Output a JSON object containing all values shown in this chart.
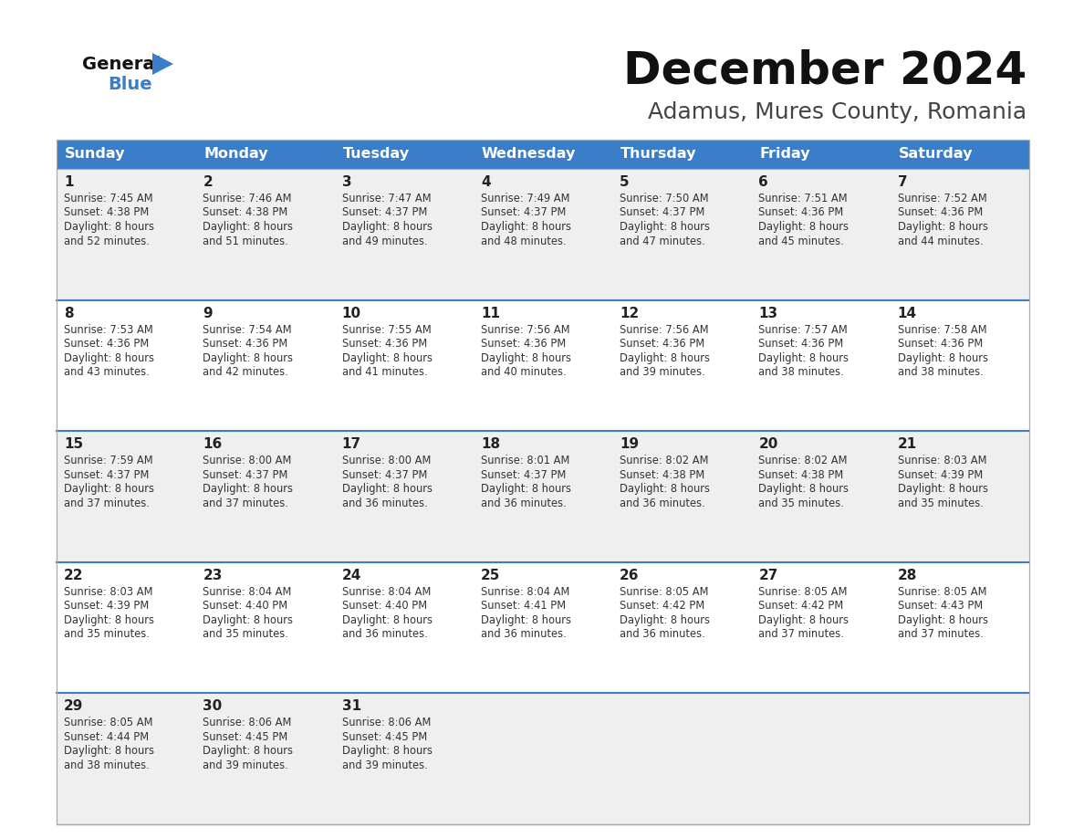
{
  "title": "December 2024",
  "subtitle": "Adamus, Mures County, Romania",
  "header_bg": "#3A7DC9",
  "header_text_color": "#FFFFFF",
  "days_of_week": [
    "Sunday",
    "Monday",
    "Tuesday",
    "Wednesday",
    "Thursday",
    "Friday",
    "Saturday"
  ],
  "cell_bg_even": "#EFEFEF",
  "cell_bg_odd": "#FFFFFF",
  "row_separator_color": "#3A7DC9",
  "border_color": "#AAAAAA",
  "text_color": "#333333",
  "day_num_color": "#222222",
  "logo_general_color": "#111111",
  "logo_blue_color": "#3A7DC9",
  "calendar": [
    [
      {
        "day": 1,
        "sunrise": "7:45 AM",
        "sunset": "4:38 PM",
        "daylight": "8 hours\nand 52 minutes."
      },
      {
        "day": 2,
        "sunrise": "7:46 AM",
        "sunset": "4:38 PM",
        "daylight": "8 hours\nand 51 minutes."
      },
      {
        "day": 3,
        "sunrise": "7:47 AM",
        "sunset": "4:37 PM",
        "daylight": "8 hours\nand 49 minutes."
      },
      {
        "day": 4,
        "sunrise": "7:49 AM",
        "sunset": "4:37 PM",
        "daylight": "8 hours\nand 48 minutes."
      },
      {
        "day": 5,
        "sunrise": "7:50 AM",
        "sunset": "4:37 PM",
        "daylight": "8 hours\nand 47 minutes."
      },
      {
        "day": 6,
        "sunrise": "7:51 AM",
        "sunset": "4:36 PM",
        "daylight": "8 hours\nand 45 minutes."
      },
      {
        "day": 7,
        "sunrise": "7:52 AM",
        "sunset": "4:36 PM",
        "daylight": "8 hours\nand 44 minutes."
      }
    ],
    [
      {
        "day": 8,
        "sunrise": "7:53 AM",
        "sunset": "4:36 PM",
        "daylight": "8 hours\nand 43 minutes."
      },
      {
        "day": 9,
        "sunrise": "7:54 AM",
        "sunset": "4:36 PM",
        "daylight": "8 hours\nand 42 minutes."
      },
      {
        "day": 10,
        "sunrise": "7:55 AM",
        "sunset": "4:36 PM",
        "daylight": "8 hours\nand 41 minutes."
      },
      {
        "day": 11,
        "sunrise": "7:56 AM",
        "sunset": "4:36 PM",
        "daylight": "8 hours\nand 40 minutes."
      },
      {
        "day": 12,
        "sunrise": "7:56 AM",
        "sunset": "4:36 PM",
        "daylight": "8 hours\nand 39 minutes."
      },
      {
        "day": 13,
        "sunrise": "7:57 AM",
        "sunset": "4:36 PM",
        "daylight": "8 hours\nand 38 minutes."
      },
      {
        "day": 14,
        "sunrise": "7:58 AM",
        "sunset": "4:36 PM",
        "daylight": "8 hours\nand 38 minutes."
      }
    ],
    [
      {
        "day": 15,
        "sunrise": "7:59 AM",
        "sunset": "4:37 PM",
        "daylight": "8 hours\nand 37 minutes."
      },
      {
        "day": 16,
        "sunrise": "8:00 AM",
        "sunset": "4:37 PM",
        "daylight": "8 hours\nand 37 minutes."
      },
      {
        "day": 17,
        "sunrise": "8:00 AM",
        "sunset": "4:37 PM",
        "daylight": "8 hours\nand 36 minutes."
      },
      {
        "day": 18,
        "sunrise": "8:01 AM",
        "sunset": "4:37 PM",
        "daylight": "8 hours\nand 36 minutes."
      },
      {
        "day": 19,
        "sunrise": "8:02 AM",
        "sunset": "4:38 PM",
        "daylight": "8 hours\nand 36 minutes."
      },
      {
        "day": 20,
        "sunrise": "8:02 AM",
        "sunset": "4:38 PM",
        "daylight": "8 hours\nand 35 minutes."
      },
      {
        "day": 21,
        "sunrise": "8:03 AM",
        "sunset": "4:39 PM",
        "daylight": "8 hours\nand 35 minutes."
      }
    ],
    [
      {
        "day": 22,
        "sunrise": "8:03 AM",
        "sunset": "4:39 PM",
        "daylight": "8 hours\nand 35 minutes."
      },
      {
        "day": 23,
        "sunrise": "8:04 AM",
        "sunset": "4:40 PM",
        "daylight": "8 hours\nand 35 minutes."
      },
      {
        "day": 24,
        "sunrise": "8:04 AM",
        "sunset": "4:40 PM",
        "daylight": "8 hours\nand 36 minutes."
      },
      {
        "day": 25,
        "sunrise": "8:04 AM",
        "sunset": "4:41 PM",
        "daylight": "8 hours\nand 36 minutes."
      },
      {
        "day": 26,
        "sunrise": "8:05 AM",
        "sunset": "4:42 PM",
        "daylight": "8 hours\nand 36 minutes."
      },
      {
        "day": 27,
        "sunrise": "8:05 AM",
        "sunset": "4:42 PM",
        "daylight": "8 hours\nand 37 minutes."
      },
      {
        "day": 28,
        "sunrise": "8:05 AM",
        "sunset": "4:43 PM",
        "daylight": "8 hours\nand 37 minutes."
      }
    ],
    [
      {
        "day": 29,
        "sunrise": "8:05 AM",
        "sunset": "4:44 PM",
        "daylight": "8 hours\nand 38 minutes."
      },
      {
        "day": 30,
        "sunrise": "8:06 AM",
        "sunset": "4:45 PM",
        "daylight": "8 hours\nand 39 minutes."
      },
      {
        "day": 31,
        "sunrise": "8:06 AM",
        "sunset": "4:45 PM",
        "daylight": "8 hours\nand 39 minutes."
      },
      null,
      null,
      null,
      null
    ]
  ]
}
